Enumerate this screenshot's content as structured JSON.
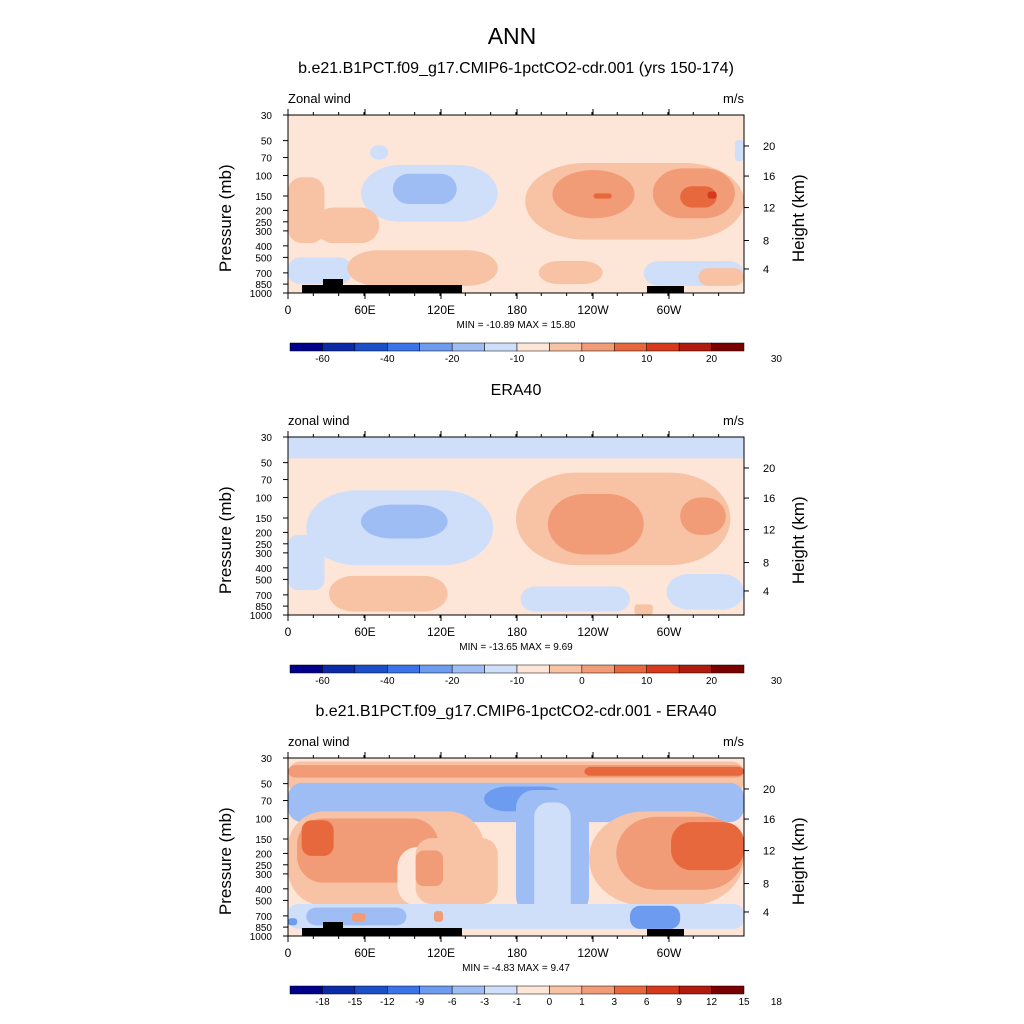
{
  "figure_title": "ANN",
  "chart_data": [
    {
      "type": "heatmap",
      "title": "b.e21.B1PCT.f09_g17.CMIP6-1pctCO2-cdr.001 (yrs 150-174)",
      "left_label": "Zonal wind",
      "units": "m/s",
      "ylabel": "Pressure (mb)",
      "y2label": "Height (km)",
      "xticks": [
        "0",
        "60E",
        "120E",
        "180",
        "120W",
        "60W"
      ],
      "yticks": [
        "30",
        "50",
        "70",
        "100",
        "150",
        "200",
        "250",
        "300",
        "400",
        "500",
        "700",
        "850",
        "1000"
      ],
      "y2ticks": [
        "20",
        "16",
        "12",
        "8",
        "4"
      ],
      "stats": "MIN = -10.89  MAX =  15.80",
      "min": -10.89,
      "max": 15.8,
      "colorbar": [
        "-60",
        "-40",
        "-20",
        "-10",
        "0",
        "10",
        "20",
        "30"
      ],
      "ylim": [
        1000,
        30
      ]
    },
    {
      "type": "heatmap",
      "title": "ERA40",
      "left_label": "zonal wind",
      "units": "m/s",
      "ylabel": "Pressure (mb)",
      "y2label": "Height (km)",
      "xticks": [
        "0",
        "60E",
        "120E",
        "180",
        "120W",
        "60W"
      ],
      "yticks": [
        "30",
        "50",
        "70",
        "100",
        "150",
        "200",
        "250",
        "300",
        "400",
        "500",
        "700",
        "850",
        "1000"
      ],
      "y2ticks": [
        "20",
        "16",
        "12",
        "8",
        "4"
      ],
      "stats": "MIN = -13.65  MAX =   9.69",
      "min": -13.65,
      "max": 9.69,
      "colorbar": [
        "-60",
        "-40",
        "-20",
        "-10",
        "0",
        "10",
        "20",
        "30"
      ],
      "ylim": [
        1000,
        30
      ]
    },
    {
      "type": "heatmap",
      "title": "b.e21.B1PCT.f09_g17.CMIP6-1pctCO2-cdr.001 - ERA40",
      "left_label": "zonal wind",
      "units": "m/s",
      "ylabel": "Pressure (mb)",
      "y2label": "Height (km)",
      "xticks": [
        "0",
        "60E",
        "120E",
        "180",
        "120W",
        "60W"
      ],
      "yticks": [
        "30",
        "50",
        "70",
        "100",
        "150",
        "200",
        "250",
        "300",
        "400",
        "500",
        "700",
        "850",
        "1000"
      ],
      "y2ticks": [
        "20",
        "16",
        "12",
        "8",
        "4"
      ],
      "stats": "MIN =  -4.83  MAX =   9.47",
      "min": -4.83,
      "max": 9.47,
      "colorbar": [
        "-18",
        "-15",
        "-12",
        "-9",
        "-6",
        "-3",
        "-1",
        "0",
        "1",
        "3",
        "6",
        "9",
        "12",
        "15",
        "18"
      ],
      "ylim": [
        1000,
        30
      ]
    }
  ],
  "colors": {
    "palette": [
      "#00008b",
      "#0a2aa8",
      "#1a4fc8",
      "#3a74e8",
      "#6d9bf0",
      "#9fbdf5",
      "#cfdffa",
      "#fde6d8",
      "#f8c2a4",
      "#f19b77",
      "#e8683e",
      "#d63a1a",
      "#b01b0e",
      "#7a0000"
    ],
    "land": "#000000"
  }
}
